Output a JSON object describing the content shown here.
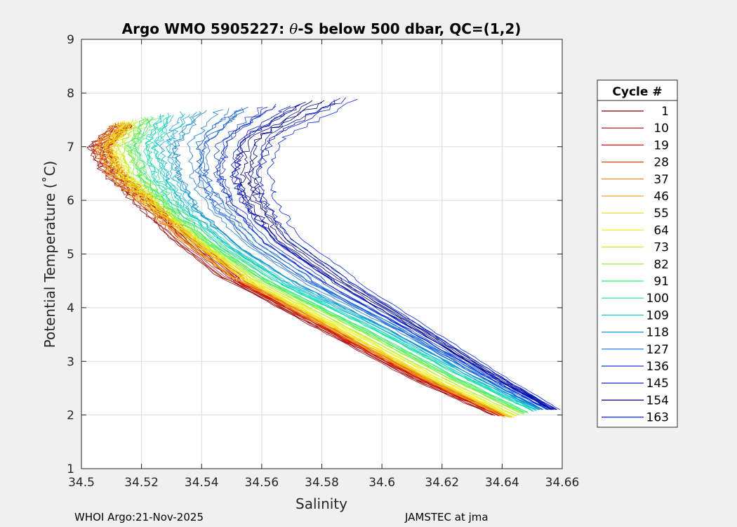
{
  "chart_data": {
    "type": "line",
    "title_parts": [
      "Argo WMO 5905227: ",
      "θ",
      "-S below 500 dbar,  QC=(1,2)"
    ],
    "xlabel": "Salinity",
    "ylabel": "Potential Temperature (˚C)",
    "xlim": [
      34.5,
      34.66
    ],
    "ylim": [
      1,
      9
    ],
    "xticks": [
      "34.5",
      "34.52",
      "34.54",
      "34.56",
      "34.58",
      "34.6",
      "34.62",
      "34.64",
      "34.66"
    ],
    "yticks": [
      "1",
      "2",
      "3",
      "4",
      "5",
      "6",
      "7",
      "8",
      "9"
    ],
    "grid": true,
    "legend": {
      "title": "Cycle #",
      "placement": "outside-right",
      "entries": [
        "1",
        "10",
        "19",
        "28",
        "37",
        "46",
        "55",
        "64",
        "73",
        "82",
        "91",
        "100",
        "109",
        "118",
        "127",
        "136",
        "145",
        "154",
        "163"
      ],
      "colors": [
        "#800000",
        "#b30000",
        "#d81010",
        "#e03a10",
        "#ee7a10",
        "#f2a81e",
        "#e8d812",
        "#f4f21a",
        "#c6f02a",
        "#7cf03c",
        "#2ef06e",
        "#16e0a8",
        "#16c8dc",
        "#1096d2",
        "#0a6ae0",
        "#0a3ce8",
        "#0010d0",
        "#000070",
        "#0020ff"
      ]
    },
    "series_shape": [
      {
        "salinity": [
          34.514,
          34.505,
          34.51,
          34.52,
          34.532,
          34.55,
          34.58,
          34.61,
          34.638
        ],
        "theta": [
          7.4,
          7.0,
          6.5,
          6.0,
          5.3,
          4.5,
          3.6,
          2.7,
          2.0
        ]
      },
      {
        "salinity": [
          34.514,
          34.508,
          34.512,
          34.522,
          34.536,
          34.555,
          34.585,
          34.615,
          34.643
        ],
        "theta": [
          7.45,
          7.0,
          6.5,
          6.0,
          5.3,
          4.5,
          3.6,
          2.7,
          1.95
        ]
      },
      {
        "salinity": [
          34.53,
          34.525,
          34.528,
          34.535,
          34.55,
          34.57,
          34.6,
          34.63,
          34.652
        ],
        "theta": [
          7.6,
          7.0,
          6.4,
          5.8,
          5.1,
          4.4,
          3.6,
          2.7,
          2.1
        ]
      },
      {
        "salinity": [
          34.59,
          34.565,
          34.56,
          34.562,
          34.57,
          34.59,
          34.615,
          34.64,
          34.658
        ],
        "theta": [
          7.9,
          7.2,
          6.5,
          6.0,
          5.3,
          4.5,
          3.6,
          2.7,
          2.1
        ]
      }
    ]
  },
  "footer": {
    "left": "WHOI Argo:21-Nov-2025",
    "right": "JAMSTEC at jma"
  }
}
